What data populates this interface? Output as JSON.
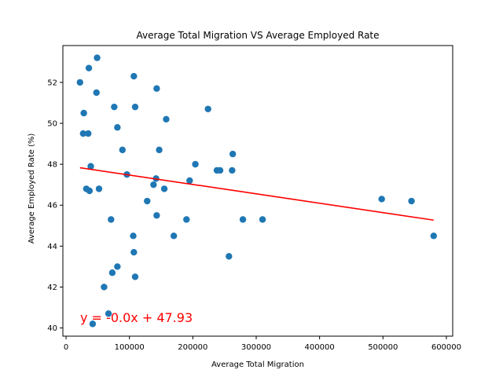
{
  "chart_data": {
    "type": "scatter",
    "title": "Average Total Migration VS Average Employed Rate",
    "xlabel": "Average Total Migration",
    "ylabel": "Average Employed Rate (%)",
    "xlim": [
      -5000,
      610000
    ],
    "ylim": [
      39.6,
      53.8
    ],
    "xticks": [
      0,
      100000,
      200000,
      300000,
      400000,
      500000,
      600000
    ],
    "yticks": [
      40,
      42,
      44,
      46,
      48,
      50,
      52
    ],
    "grid": false,
    "legend": "none",
    "colors": {
      "points": "#1f77b4",
      "trend": "#ff0000"
    },
    "points": [
      {
        "x": 22000,
        "y": 52.0
      },
      {
        "x": 28000,
        "y": 50.5
      },
      {
        "x": 27000,
        "y": 49.5
      },
      {
        "x": 35000,
        "y": 49.5
      },
      {
        "x": 36000,
        "y": 52.7
      },
      {
        "x": 49000,
        "y": 53.2
      },
      {
        "x": 48000,
        "y": 51.5
      },
      {
        "x": 32000,
        "y": 46.8
      },
      {
        "x": 37000,
        "y": 46.7
      },
      {
        "x": 39000,
        "y": 47.9
      },
      {
        "x": 52000,
        "y": 46.8
      },
      {
        "x": 42000,
        "y": 40.2
      },
      {
        "x": 60000,
        "y": 42.0
      },
      {
        "x": 67000,
        "y": 40.7
      },
      {
        "x": 71000,
        "y": 45.3
      },
      {
        "x": 73000,
        "y": 42.7
      },
      {
        "x": 76000,
        "y": 50.8
      },
      {
        "x": 81000,
        "y": 49.8
      },
      {
        "x": 81000,
        "y": 43.0
      },
      {
        "x": 89000,
        "y": 48.7
      },
      {
        "x": 96000,
        "y": 47.5
      },
      {
        "x": 106000,
        "y": 44.5
      },
      {
        "x": 107000,
        "y": 52.3
      },
      {
        "x": 107000,
        "y": 43.7
      },
      {
        "x": 109000,
        "y": 50.8
      },
      {
        "x": 109000,
        "y": 42.5
      },
      {
        "x": 128000,
        "y": 46.2
      },
      {
        "x": 138000,
        "y": 47.0
      },
      {
        "x": 142000,
        "y": 47.3
      },
      {
        "x": 143000,
        "y": 51.7
      },
      {
        "x": 143000,
        "y": 45.5
      },
      {
        "x": 147000,
        "y": 48.7
      },
      {
        "x": 155000,
        "y": 46.8
      },
      {
        "x": 158000,
        "y": 50.2
      },
      {
        "x": 170000,
        "y": 44.5
      },
      {
        "x": 190000,
        "y": 45.3
      },
      {
        "x": 195000,
        "y": 47.2
      },
      {
        "x": 204000,
        "y": 48.0
      },
      {
        "x": 224000,
        "y": 50.7
      },
      {
        "x": 238000,
        "y": 47.7
      },
      {
        "x": 243000,
        "y": 47.7
      },
      {
        "x": 257000,
        "y": 43.5
      },
      {
        "x": 262000,
        "y": 47.7
      },
      {
        "x": 263000,
        "y": 48.5
      },
      {
        "x": 279000,
        "y": 45.3
      },
      {
        "x": 310000,
        "y": 45.3
      },
      {
        "x": 498000,
        "y": 46.3
      },
      {
        "x": 545000,
        "y": 46.2
      },
      {
        "x": 580000,
        "y": 44.5
      }
    ],
    "trendline": {
      "x": [
        22000,
        580000
      ],
      "y": [
        47.83,
        45.27
      ]
    },
    "annotation": "y = -0.0x + 47.93"
  }
}
